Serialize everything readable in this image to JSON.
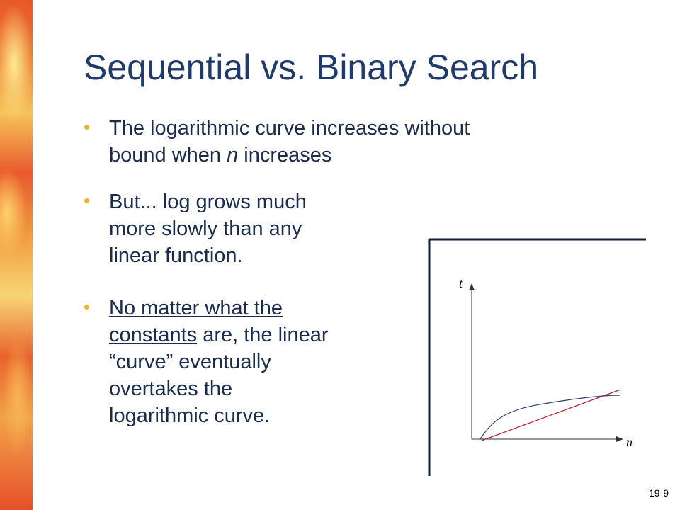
{
  "slide": {
    "title": "Sequential vs. Binary Search",
    "bullets": [
      {
        "lines": [
          [
            "The logarithmic curve increases without"
          ],
          [
            "bound when ",
            "n",
            " increases"
          ]
        ]
      },
      {
        "lines": [
          [
            "But... log grows much"
          ],
          [
            "more slowly than any"
          ],
          [
            "linear function."
          ]
        ]
      },
      {
        "lines": [
          [
            "No matter what the"
          ],
          [
            "constants",
            " are, the linear"
          ],
          [
            "“curve” eventually"
          ],
          [
            "overtakes the"
          ],
          [
            "logarithmic curve."
          ]
        ]
      }
    ],
    "page_number": "19-9"
  },
  "figure": {
    "y_axis_label": "t",
    "x_axis_label": "n",
    "curve_colors": {
      "log": "#2a3f7a",
      "linear": "#b02040"
    }
  },
  "colors": {
    "title": "#1f3a6e",
    "bullet": "#f0b41e",
    "text": "#1b2b4e"
  }
}
